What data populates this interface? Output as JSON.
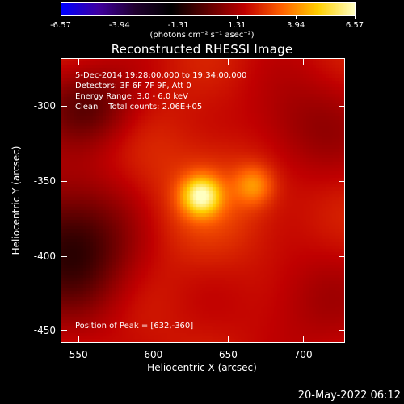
{
  "colorbar": {
    "ticks": [
      "-6.57",
      "-3.94",
      "-1.31",
      "1.31",
      "3.94",
      "6.57"
    ],
    "tick_values": [
      -6.57,
      -3.94,
      -1.31,
      1.31,
      3.94,
      6.57
    ],
    "range": [
      -6.57,
      6.57
    ],
    "units_label": "(photons cm⁻² s⁻¹ asec⁻²)",
    "colors": [
      "#0000ff",
      "#4000a0",
      "#200030",
      "#000000",
      "#600000",
      "#c00000",
      "#ff6000",
      "#ffd000",
      "#ffffc0"
    ]
  },
  "chart_data": {
    "type": "heatmap",
    "title": "Reconstructed RHESSI Image",
    "xlabel": "Heliocentric X (arcsec)",
    "ylabel": "Heliocentric Y (arcsec)",
    "xlim": [
      538,
      728
    ],
    "ylim": [
      -458,
      -268
    ],
    "x_ticks": [
      "550",
      "600",
      "650",
      "700"
    ],
    "x_tick_values": [
      550,
      600,
      650,
      700
    ],
    "y_ticks": [
      "-300",
      "-350",
      "-400",
      "-450"
    ],
    "y_tick_values": [
      -300,
      -350,
      -400,
      -450
    ],
    "peak_position": [
      632,
      -360
    ],
    "sources": [
      {
        "x": 632,
        "y": -360,
        "relative_intensity": 1.0
      },
      {
        "x": 667,
        "y": -353,
        "relative_intensity": 0.45
      }
    ],
    "annotations": {
      "time_range": "5-Dec-2014 19:28:00.000 to 19:34:00.000",
      "detectors": "Detectors: 3F 6F 7F 9F, Att 0",
      "energy": "Energy Range: 3.0 - 6.0 keV",
      "method": "Clean    Total counts: 2.06E+05",
      "peak": "Position of Peak = [632,-360]"
    }
  },
  "footer": {
    "datestamp": "20-May-2022 06:12"
  }
}
